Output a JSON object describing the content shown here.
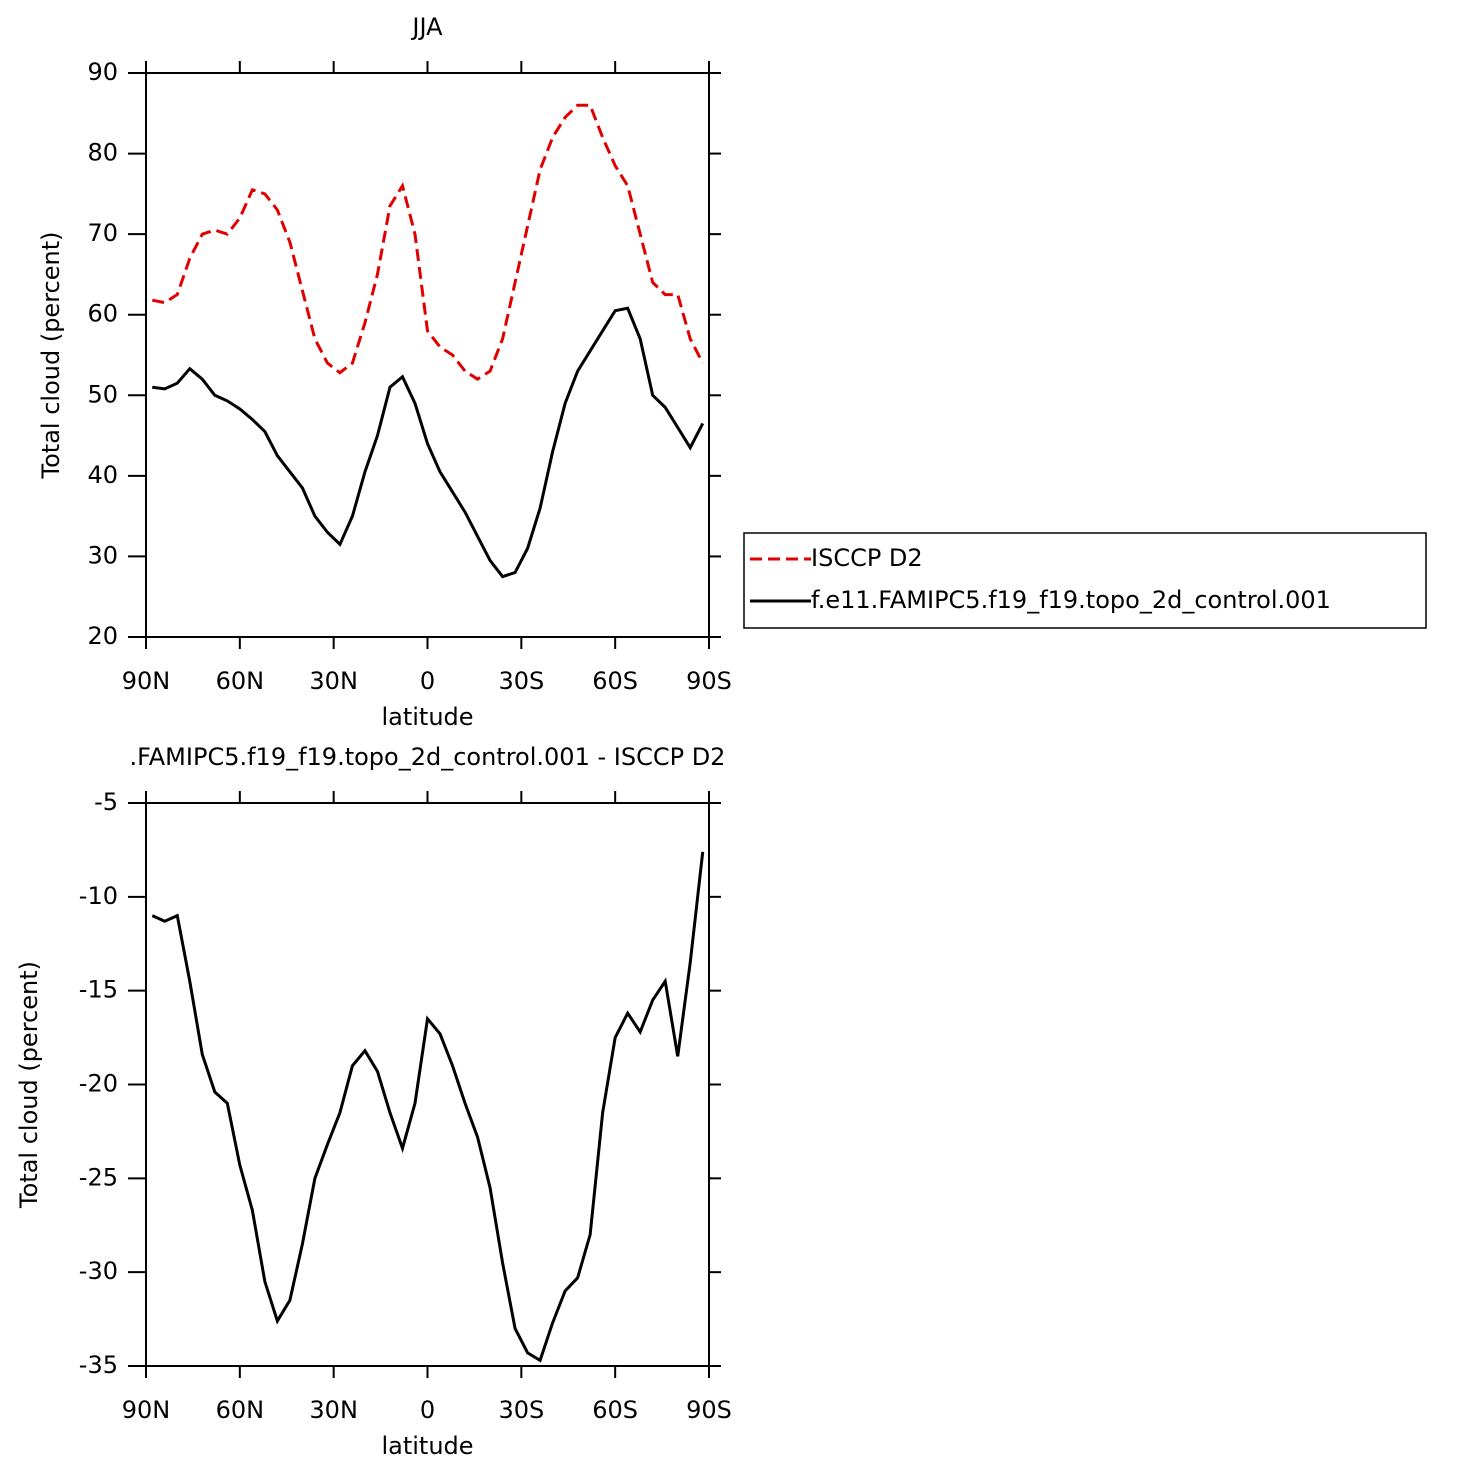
{
  "chart_data": [
    {
      "type": "line",
      "title": "JJA",
      "xlabel": "latitude",
      "ylabel": "Total cloud (percent)",
      "x": [
        88,
        84,
        80,
        76,
        72,
        68,
        64,
        60,
        56,
        52,
        48,
        44,
        40,
        36,
        32,
        28,
        24,
        20,
        16,
        12,
        8,
        4,
        0,
        -4,
        -8,
        -12,
        -16,
        -20,
        -24,
        -28,
        -32,
        -36,
        -40,
        -44,
        -48,
        -52,
        -56,
        -60,
        -64,
        -68,
        -72,
        -76,
        -80,
        -84,
        -88
      ],
      "xlim": [
        90,
        -90
      ],
      "xticks": [
        {
          "value": 90,
          "label": "90N"
        },
        {
          "value": 60,
          "label": "60N"
        },
        {
          "value": 30,
          "label": "30N"
        },
        0,
        {
          "value": -30,
          "label": "30S"
        },
        {
          "value": -60,
          "label": "60S"
        },
        {
          "value": -90,
          "label": "90S"
        }
      ],
      "ylim": [
        20,
        90
      ],
      "yticks": [
        20,
        30,
        40,
        50,
        60,
        70,
        80,
        90
      ],
      "legend": "right",
      "series": [
        {
          "name": "ISCCP D2",
          "color": "#e00000",
          "linestyle": "dashed",
          "values": [
            61.8,
            61.5,
            62.5,
            67,
            70,
            70.5,
            70,
            72,
            75.5,
            75,
            73,
            69,
            63,
            57,
            54,
            52.8,
            54,
            59,
            65,
            73.5,
            76,
            70,
            58,
            56,
            55,
            53,
            52,
            53,
            57,
            64,
            71,
            78,
            82,
            84.5,
            86,
            86,
            82,
            78.5,
            76,
            70,
            64,
            62.5,
            62.5,
            57,
            54
          ]
        },
        {
          "name": "f.e11.FAMIPC5.f19_f19.topo_2d_control.001",
          "color": "#000000",
          "linestyle": "solid",
          "values": [
            51,
            50.8,
            51.5,
            53.3,
            52,
            50,
            49.3,
            48.3,
            47,
            45.5,
            42.5,
            40.5,
            38.5,
            35,
            33,
            31.5,
            35,
            40.5,
            45,
            51,
            52.3,
            49,
            44,
            40.5,
            38,
            35.5,
            32.5,
            29.5,
            27.5,
            28,
            31,
            36,
            43,
            49,
            53,
            55.5,
            58,
            60.5,
            60.8,
            57,
            50,
            48.5,
            46,
            43.5,
            46.5
          ]
        }
      ]
    },
    {
      "type": "line",
      "title": ".FAMIPC5.f19_f19.topo_2d_control.001 - ISCCP D2",
      "xlabel": "latitude",
      "ylabel": "Total cloud (percent)",
      "x": [
        88,
        84,
        80,
        76,
        72,
        68,
        64,
        60,
        56,
        52,
        48,
        44,
        40,
        36,
        32,
        28,
        24,
        20,
        16,
        12,
        8,
        4,
        0,
        -4,
        -8,
        -12,
        -16,
        -20,
        -24,
        -28,
        -32,
        -36,
        -40,
        -44,
        -48,
        -52,
        -56,
        -60,
        -64,
        -68,
        -72,
        -76,
        -80,
        -84,
        -88
      ],
      "xlim": [
        90,
        -90
      ],
      "xticks": [
        {
          "value": 90,
          "label": "90N"
        },
        {
          "value": 60,
          "label": "60N"
        },
        {
          "value": 30,
          "label": "30N"
        },
        0,
        {
          "value": -30,
          "label": "30S"
        },
        {
          "value": -60,
          "label": "60S"
        },
        {
          "value": -90,
          "label": "90S"
        }
      ],
      "ylim": [
        -35,
        -5
      ],
      "yticks": [
        -35,
        -30,
        -25,
        -20,
        -15,
        -10,
        -5
      ],
      "series": [
        {
          "color": "#000000",
          "linestyle": "solid",
          "values": [
            -11,
            -11.3,
            -11,
            -14.5,
            -18.4,
            -20.4,
            -21,
            -24.3,
            -26.7,
            -30.5,
            -32.6,
            -31.5,
            -28.5,
            -25,
            -23.2,
            -21.5,
            -19,
            -18.2,
            -19.3,
            -21.5,
            -23.4,
            -21,
            -16.5,
            -17.3,
            -19,
            -21,
            -22.8,
            -25.5,
            -29.5,
            -33,
            -34.3,
            -34.7,
            -32.7,
            -31,
            -30.3,
            -28,
            -21.5,
            -17.5,
            -16.2,
            -17.2,
            -15.5,
            -14.5,
            -18.5,
            -13.5,
            -7.6
          ]
        }
      ]
    }
  ]
}
